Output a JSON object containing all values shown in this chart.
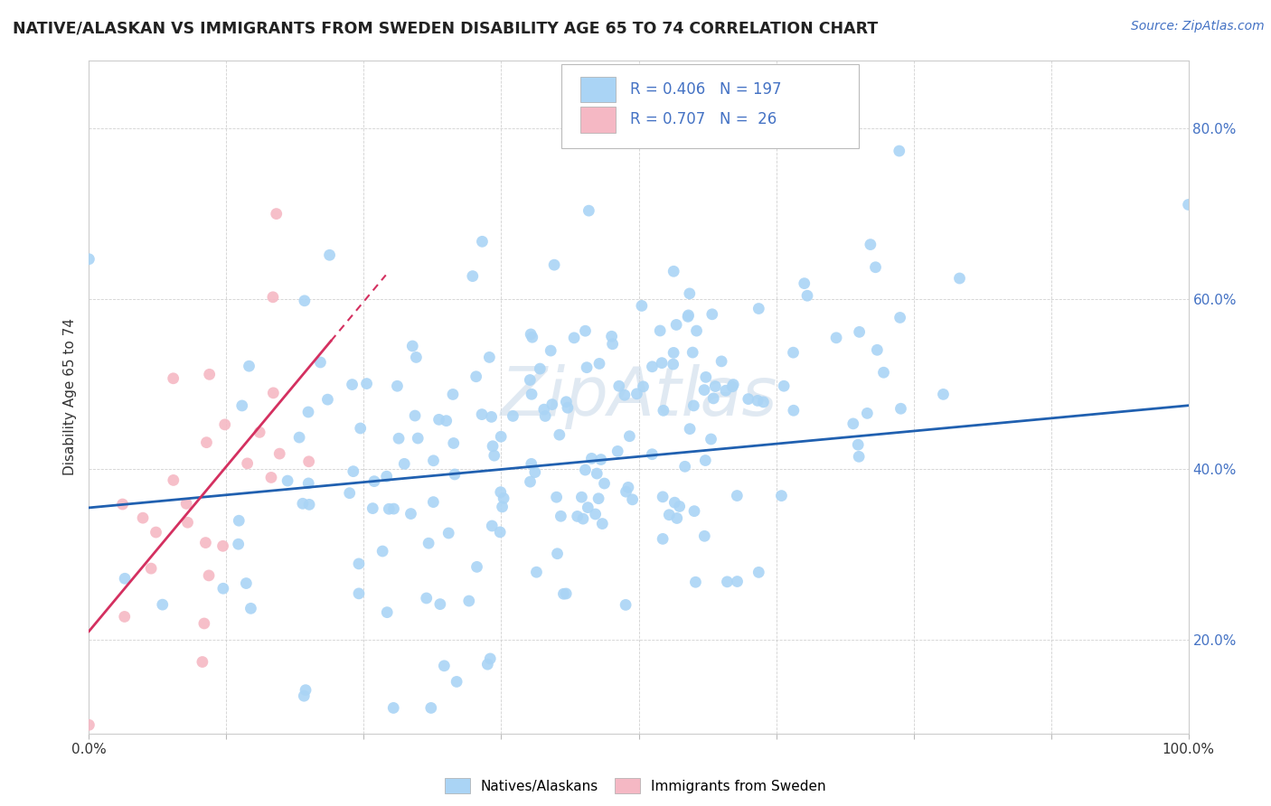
{
  "title": "NATIVE/ALASKAN VS IMMIGRANTS FROM SWEDEN DISABILITY AGE 65 TO 74 CORRELATION CHART",
  "source_text": "Source: ZipAtlas.com",
  "ylabel": "Disability Age 65 to 74",
  "xlim": [
    0.0,
    1.0
  ],
  "ylim": [
    0.09,
    0.88
  ],
  "xtick_positions": [
    0.0,
    0.125,
    0.25,
    0.375,
    0.5,
    0.625,
    0.75,
    0.875,
    1.0
  ],
  "xtick_labels": [
    "0.0%",
    "",
    "",
    "",
    "",
    "",
    "",
    "",
    "100.0%"
  ],
  "ytick_positions": [
    0.2,
    0.4,
    0.6,
    0.8
  ],
  "ytick_labels": [
    "20.0%",
    "40.0%",
    "60.0%",
    "80.0%"
  ],
  "R_blue": 0.406,
  "N_blue": 197,
  "R_pink": 0.707,
  "N_pink": 26,
  "blue_color": "#aad4f5",
  "pink_color": "#f5b8c4",
  "blue_line_color": "#2060b0",
  "pink_line_color": "#d43060",
  "legend_blue_label": "Natives/Alaskans",
  "legend_pink_label": "Immigrants from Sweden",
  "watermark": "ZipAtlas",
  "blue_seed": 42,
  "pink_seed": 77
}
